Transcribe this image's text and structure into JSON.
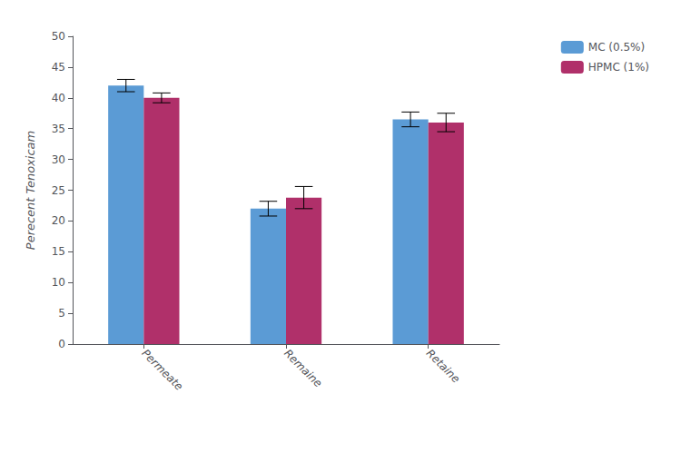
{
  "chart_data": {
    "type": "bar",
    "categories": [
      "Permeate",
      "Remaine",
      "Retaine"
    ],
    "series": [
      {
        "name": "MC (0.5%)",
        "color": "#5b9bd5",
        "values": [
          42.0,
          22.0,
          36.5
        ],
        "errors": [
          1.0,
          1.2,
          1.2
        ]
      },
      {
        "name": "HPMC (1%)",
        "color": "#b0306a",
        "values": [
          40.0,
          23.8,
          36.0
        ],
        "errors": [
          0.8,
          1.8,
          1.5
        ]
      }
    ],
    "ylabel": "Perecent Tenoxicam",
    "ylim": [
      0,
      50
    ],
    "yticks": [
      0,
      5,
      10,
      15,
      20,
      25,
      30,
      35,
      40,
      45,
      50
    ],
    "grid": false,
    "legend": "right"
  }
}
